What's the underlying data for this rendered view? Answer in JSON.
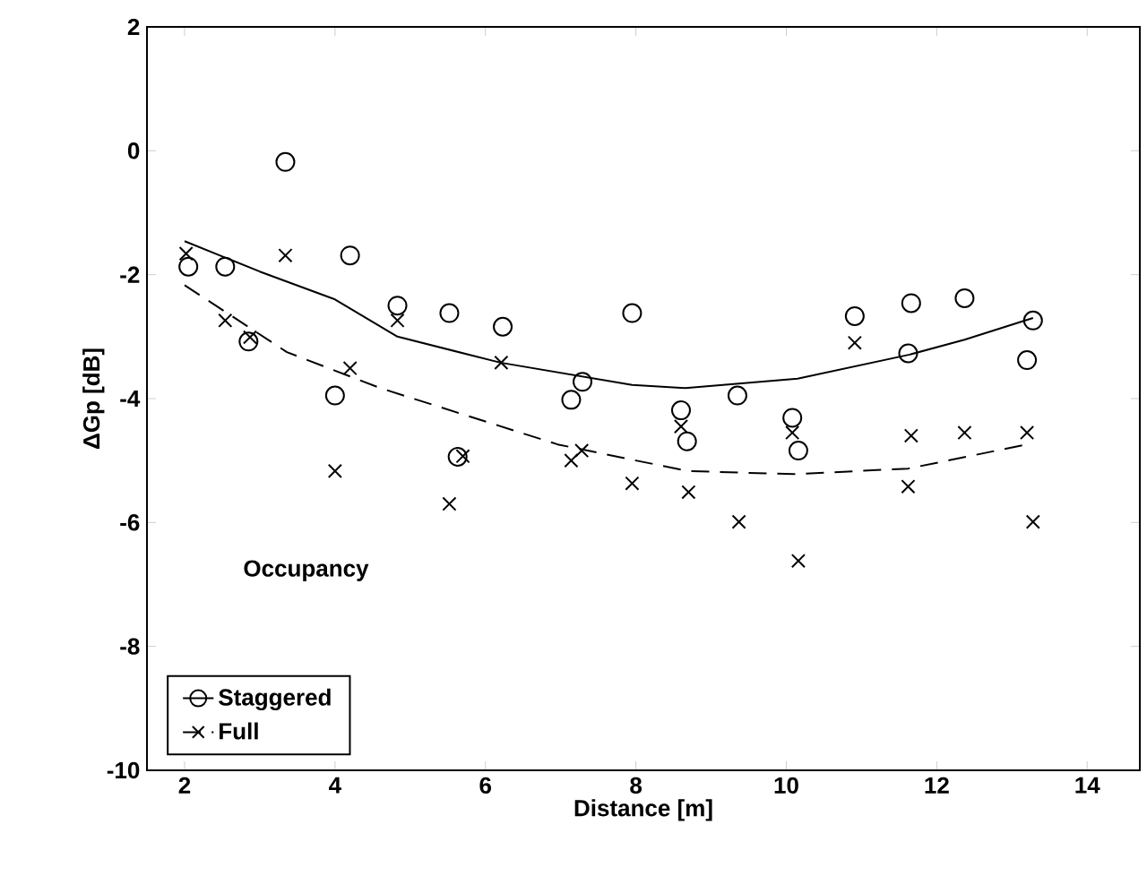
{
  "chart_data": {
    "type": "scatter",
    "xlabel": "Distance [m]",
    "ylabel": "ΔGp [dB]",
    "legend_title": "Occupancy",
    "legend": "bottom left",
    "grid": false,
    "xlim": [
      1.5,
      14.7
    ],
    "ylim": [
      -10,
      2
    ],
    "xticks": [
      2,
      4,
      6,
      8,
      10,
      12,
      14
    ],
    "yticks": [
      -10,
      -8,
      -6,
      -4,
      -2,
      0,
      2
    ],
    "series": [
      {
        "marker": "circle",
        "color": "#000000",
        "x": [
          2.05,
          2.54,
          2.85,
          3.34,
          4.0,
          4.2,
          4.83,
          5.52,
          5.63,
          6.23,
          7.14,
          7.29,
          7.95,
          8.6,
          8.68,
          9.35,
          10.08,
          10.16,
          10.91,
          11.62,
          11.66,
          12.37,
          13.28,
          13.2
        ],
        "values": [
          -1.87,
          -1.87,
          -3.08,
          -0.18,
          -3.95,
          -1.69,
          -2.5,
          -2.62,
          -4.94,
          -2.84,
          -4.02,
          -3.73,
          -2.62,
          -4.19,
          -4.69,
          -3.95,
          -4.31,
          -4.84,
          -2.67,
          -3.27,
          -2.46,
          -2.38,
          -2.74,
          -3.38
        ]
      },
      {
        "marker": "cross",
        "color": "#000000",
        "x": [
          2.02,
          2.54,
          2.87,
          3.34,
          4.2,
          4.0,
          4.83,
          5.52,
          5.7,
          6.21,
          7.14,
          7.28,
          7.95,
          8.6,
          8.7,
          9.37,
          10.16,
          10.08,
          10.91,
          11.66,
          11.62,
          12.37,
          13.2,
          13.28
        ],
        "values": [
          -1.66,
          -2.74,
          -3.01,
          -1.69,
          -3.51,
          -5.17,
          -2.74,
          -5.7,
          -4.93,
          -3.42,
          -5.0,
          -4.84,
          -5.37,
          -4.45,
          -5.51,
          -5.99,
          -6.62,
          -4.55,
          -3.1,
          -4.6,
          -5.42,
          -4.55,
          -4.55,
          -5.99
        ]
      },
      {
        "name": "Staggered",
        "type": "line",
        "line_style": "solid",
        "marker": "none",
        "color": "#000000",
        "x": [
          2.0,
          3.0,
          4.0,
          4.83,
          6.2,
          7.95,
          8.66,
          10.15,
          11.64,
          12.37,
          13.28
        ],
        "values": [
          -1.46,
          -1.95,
          -2.4,
          -3.0,
          -3.42,
          -3.78,
          -3.83,
          -3.68,
          -3.29,
          -3.05,
          -2.7
        ]
      },
      {
        "name": "Full",
        "type": "line",
        "line_style": "dashed",
        "marker": "none",
        "color": "#000000",
        "x": [
          2.0,
          3.36,
          4.6,
          6.96,
          8.0,
          8.7,
          10.1,
          11.62,
          13.2
        ],
        "values": [
          -2.17,
          -3.25,
          -3.83,
          -4.74,
          -5.0,
          -5.17,
          -5.22,
          -5.13,
          -4.74
        ]
      }
    ]
  }
}
